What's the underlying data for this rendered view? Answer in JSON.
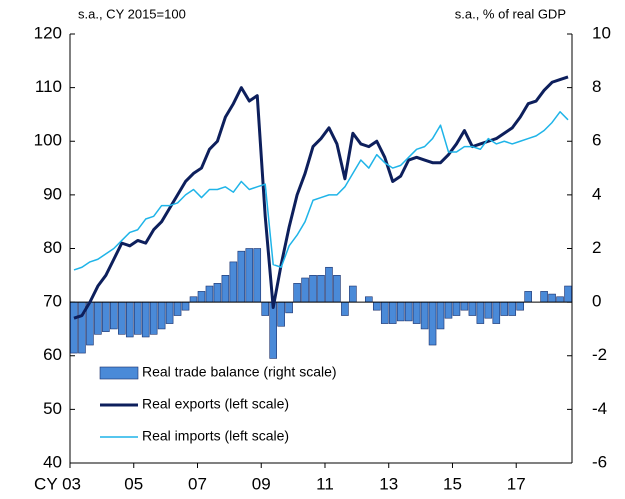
{
  "chart_data": {
    "type": "bar",
    "subtitle_left": "s.a., CY 2015=100",
    "subtitle_right": "s.a., % of real GDP",
    "categories": [
      "CY 03",
      null,
      null,
      null,
      null,
      null,
      null,
      null,
      "05",
      null,
      null,
      null,
      null,
      null,
      null,
      null,
      "07",
      null,
      null,
      null,
      null,
      null,
      null,
      null,
      "09",
      null,
      null,
      null,
      null,
      null,
      null,
      null,
      "11",
      null,
      null,
      null,
      null,
      null,
      null,
      null,
      "13",
      null,
      null,
      null,
      null,
      null,
      null,
      null,
      "15",
      null,
      null,
      null,
      null,
      null,
      null,
      null,
      "17",
      null,
      null,
      null,
      null,
      null,
      null
    ],
    "ylim": [
      40,
      120
    ],
    "yticks": [
      40,
      50,
      60,
      70,
      80,
      90,
      100,
      110,
      120
    ],
    "y2lim": [
      -6,
      10
    ],
    "y2ticks": [
      -6,
      -4,
      -2,
      0,
      2,
      4,
      6,
      8,
      10
    ],
    "series": [
      {
        "name": "Real trade balance (right scale)",
        "type": "bar",
        "axis": "y2",
        "color": "#4a8ad8",
        "values": [
          -1.9,
          -1.9,
          -1.6,
          -1.2,
          -1.1,
          -1.0,
          -1.2,
          -1.3,
          -1.2,
          -1.3,
          -1.2,
          -1.0,
          -0.8,
          -0.5,
          -0.3,
          0.2,
          0.4,
          0.6,
          0.7,
          1.0,
          1.5,
          1.9,
          2.0,
          2.0,
          -0.5,
          -2.1,
          -0.9,
          -0.4,
          0.7,
          0.9,
          1.0,
          1.0,
          1.3,
          1.0,
          -0.5,
          0.6,
          0.0,
          0.2,
          -0.3,
          -0.8,
          -0.8,
          -0.7,
          -0.7,
          -0.8,
          -1.0,
          -1.6,
          -1.0,
          -0.6,
          -0.5,
          -0.3,
          -0.5,
          -0.8,
          -0.6,
          -0.8,
          -0.5,
          -0.5,
          -0.3,
          0.4,
          0.0,
          0.4,
          0.3,
          0.2,
          0.6
        ]
      },
      {
        "name": "Real exports (left scale)",
        "type": "line",
        "axis": "y",
        "color": "#0d1f5c",
        "values": [
          67,
          67.5,
          70,
          73,
          75,
          78,
          81,
          80.5,
          81.5,
          81,
          83.5,
          85,
          87.5,
          90,
          92.5,
          94,
          95,
          98.5,
          100,
          104.5,
          107,
          110,
          107.5,
          108.5,
          86,
          69,
          77,
          84,
          90,
          94,
          99,
          100.5,
          102.5,
          99.5,
          93,
          101.5,
          99.5,
          99,
          100,
          97,
          92.5,
          93.5,
          96.5,
          97,
          96.5,
          96,
          96,
          97.5,
          99.5,
          102,
          99,
          99.5,
          100,
          100.5,
          101.5,
          102.5,
          104.5,
          107,
          107.5,
          109.5,
          111,
          111.5,
          112
        ]
      },
      {
        "name": "Real imports (left scale)",
        "type": "line",
        "axis": "y",
        "color": "#1fb4e8",
        "values": [
          76,
          76.5,
          77.5,
          78,
          79,
          80,
          81.5,
          83,
          83.5,
          85.5,
          86,
          88,
          88,
          88.5,
          90,
          91,
          89.5,
          91,
          91,
          91.5,
          90.5,
          92.5,
          91,
          91.5,
          92,
          77,
          76.5,
          80.5,
          82.5,
          85,
          89,
          89.5,
          90,
          90,
          91.5,
          94,
          96.5,
          95,
          97.5,
          96,
          95,
          95.5,
          97,
          98.5,
          99,
          100.5,
          103,
          98,
          98,
          99,
          99,
          98.5,
          100.5,
          99.5,
          100,
          99.5,
          100,
          100.5,
          101,
          102,
          103.5,
          105.5,
          104
        ]
      }
    ]
  }
}
